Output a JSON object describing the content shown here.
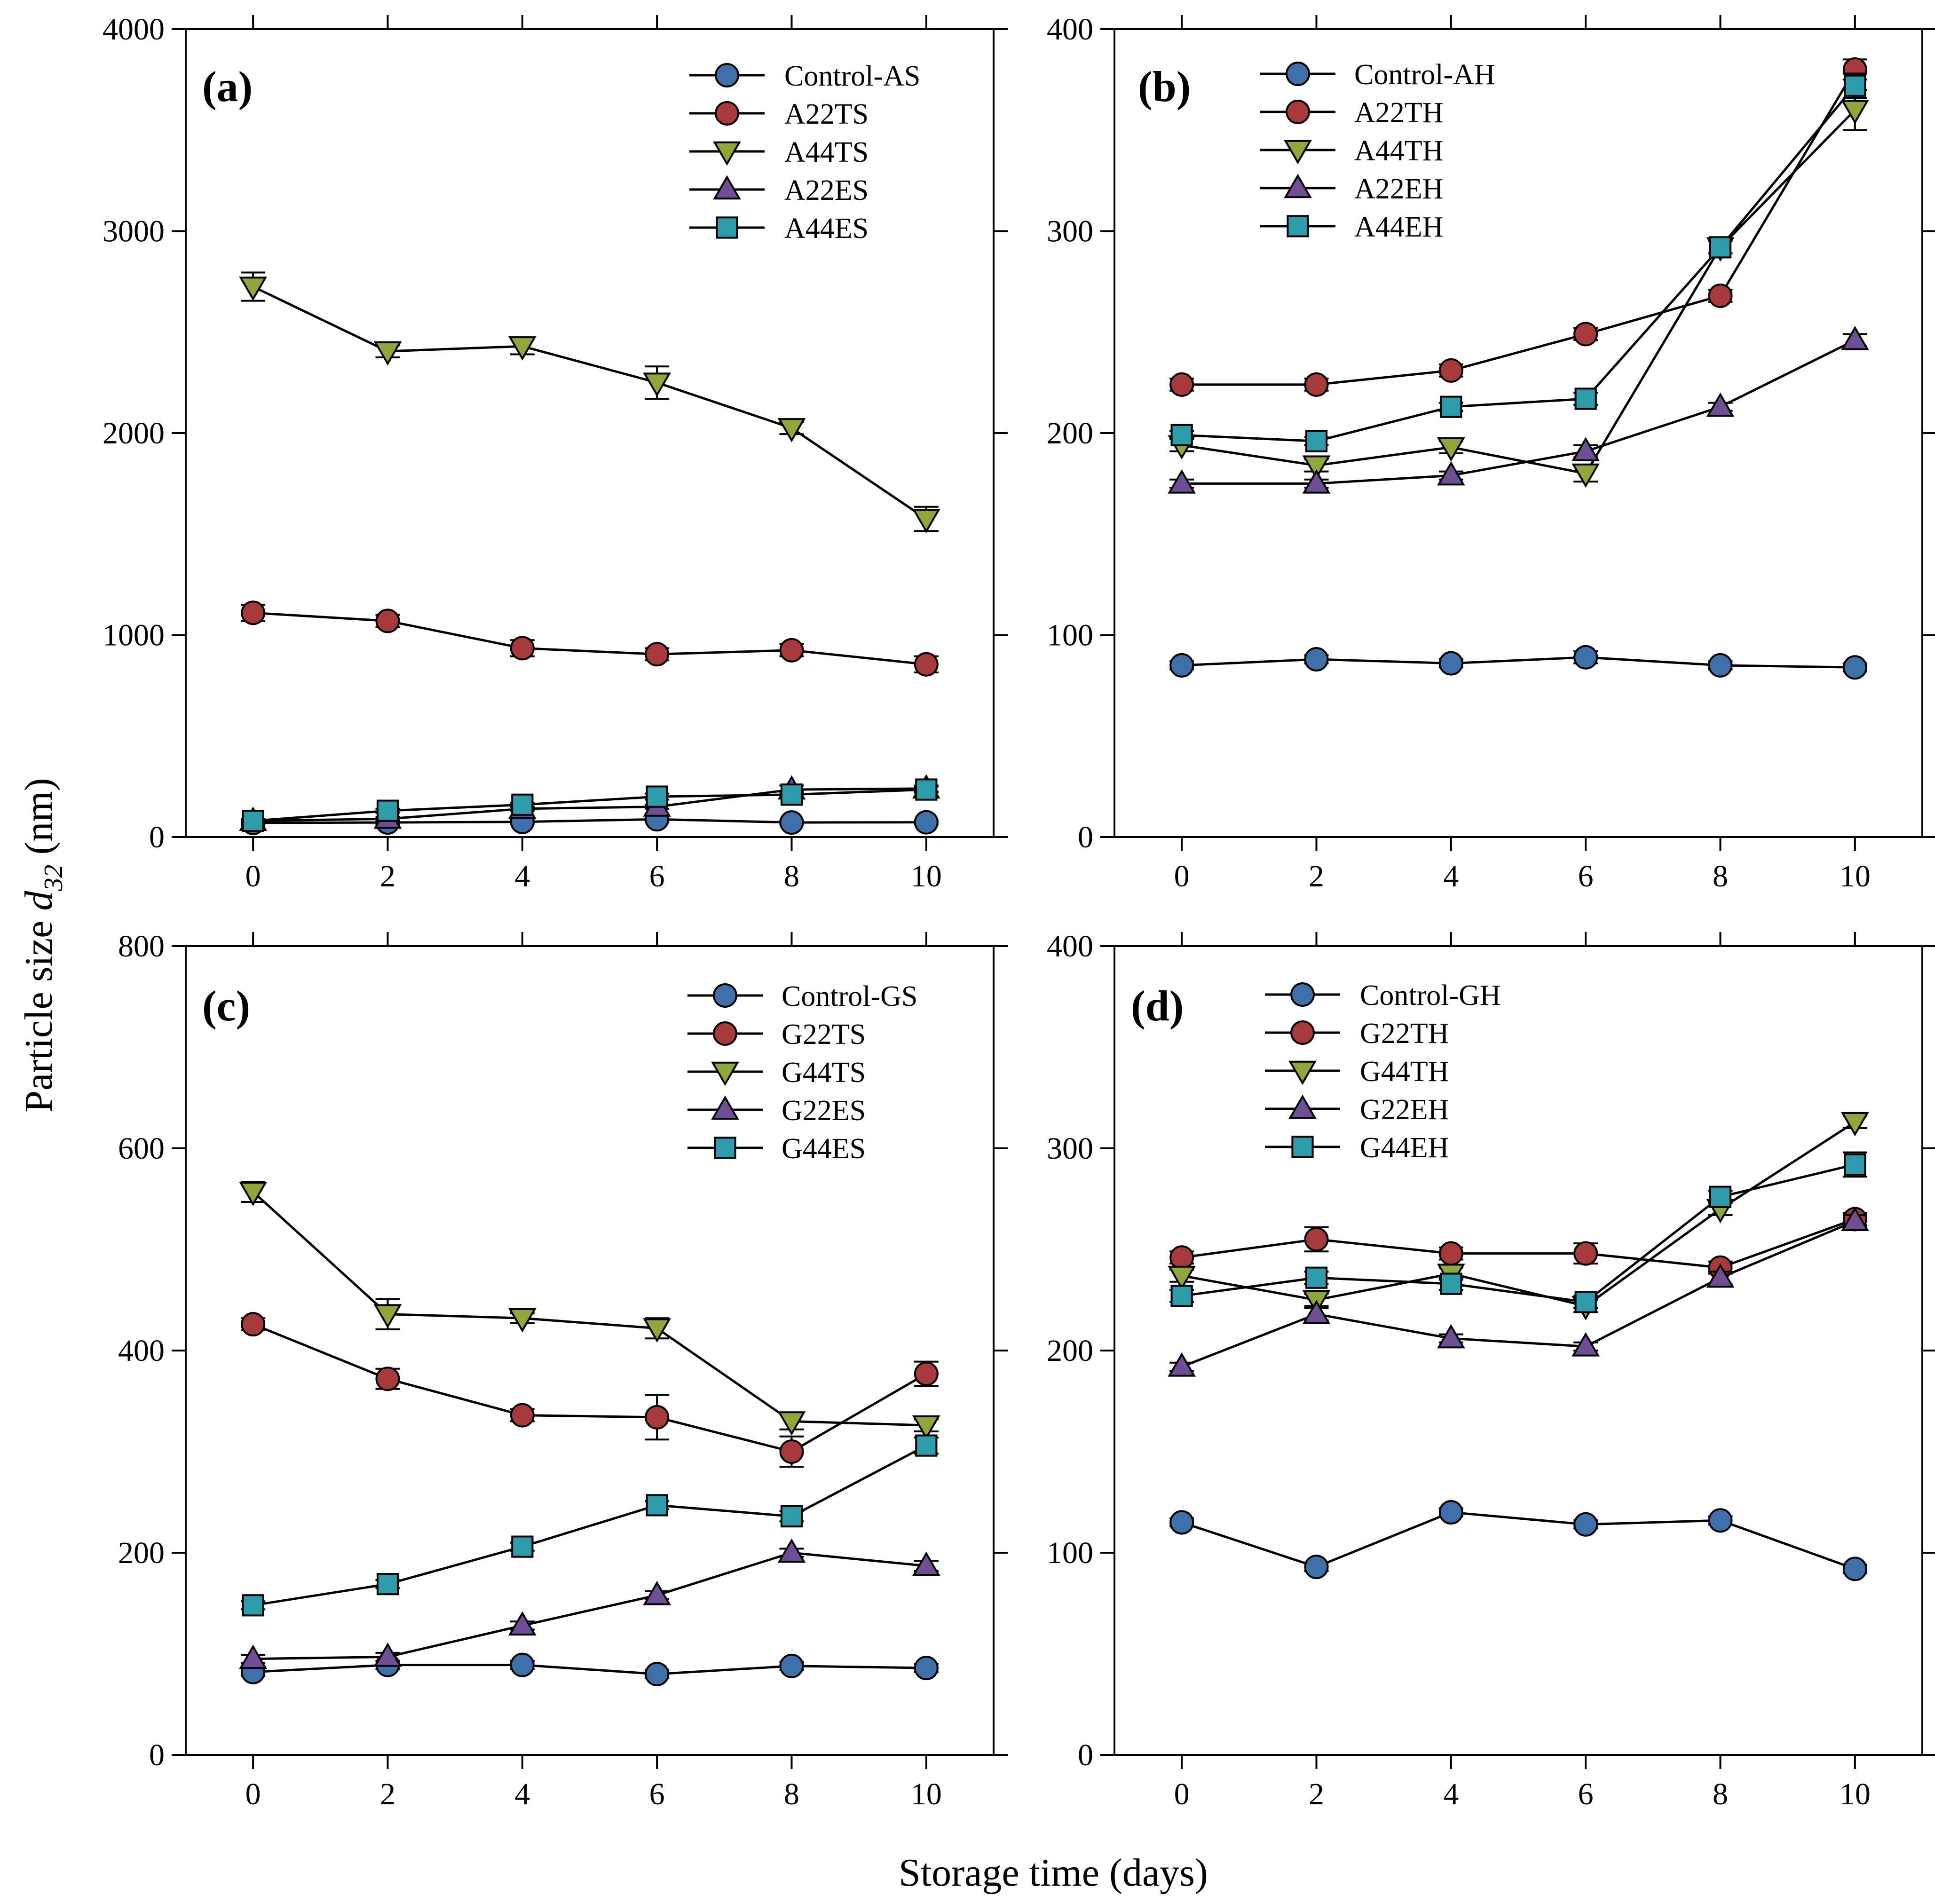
{
  "figure": {
    "xlabel": "Storage time (days)",
    "ylabel_prefix": "Particle size ",
    "ylabel_symbol": "d",
    "ylabel_subscript": "32",
    "ylabel_suffix": " (nm)"
  },
  "series_colors": {
    "circle_blue": "#3F6FA8",
    "circle_red": "#A8393A",
    "triangle_down_green": "#8FA73A",
    "triangle_up_purple": "#6E4F96",
    "square_teal": "#2E9BAA"
  },
  "chart_data": [
    {
      "type": "line",
      "panel": "(a)",
      "x": [
        0,
        2,
        4,
        6,
        8,
        10
      ],
      "xticks": [
        "0",
        "2",
        "4",
        "6",
        "8",
        "10"
      ],
      "ylim": [
        0,
        4000
      ],
      "yticks": [
        "0",
        "1000",
        "2000",
        "3000",
        "4000"
      ],
      "series": [
        {
          "name": "Control-AS",
          "marker": "circle",
          "color": "#3F6FA8",
          "values": [
            70,
            72,
            75,
            88,
            72,
            73
          ],
          "errors": [
            10,
            10,
            10,
            12,
            10,
            10
          ]
        },
        {
          "name": "A22TS",
          "marker": "circle",
          "color": "#A8393A",
          "values": [
            1110,
            1070,
            935,
            905,
            925,
            855
          ],
          "errors": [
            40,
            30,
            40,
            30,
            30,
            40
          ]
        },
        {
          "name": "A44TS",
          "marker": "triangle-down",
          "color": "#8FA73A",
          "values": [
            2725,
            2405,
            2430,
            2250,
            2025,
            1575
          ],
          "errors": [
            70,
            30,
            40,
            80,
            30,
            60
          ]
        },
        {
          "name": "A22ES",
          "marker": "triangle-up",
          "color": "#6E4F96",
          "values": [
            80,
            90,
            140,
            150,
            235,
            240
          ],
          "errors": [
            10,
            10,
            10,
            10,
            20,
            15
          ]
        },
        {
          "name": "A44ES",
          "marker": "square",
          "color": "#2E9BAA",
          "values": [
            80,
            130,
            160,
            200,
            210,
            235
          ],
          "errors": [
            10,
            10,
            10,
            15,
            15,
            15
          ]
        }
      ]
    },
    {
      "type": "line",
      "panel": "(b)",
      "x": [
        0,
        2,
        4,
        6,
        8,
        10
      ],
      "xticks": [
        "0",
        "2",
        "4",
        "6",
        "8",
        "10"
      ],
      "ylim": [
        0,
        400
      ],
      "yticks": [
        "0",
        "100",
        "200",
        "300",
        "400"
      ],
      "series": [
        {
          "name": "Control-AH",
          "marker": "circle",
          "color": "#3F6FA8",
          "values": [
            85,
            88,
            86,
            89,
            85,
            84
          ],
          "errors": [
            2,
            2,
            2,
            3,
            2,
            2
          ]
        },
        {
          "name": "A22TH",
          "marker": "circle",
          "color": "#A8393A",
          "values": [
            224,
            224,
            231,
            249,
            268,
            380
          ],
          "errors": [
            3,
            3,
            3,
            3,
            3,
            5
          ]
        },
        {
          "name": "A44TH",
          "marker": "triangle-down",
          "color": "#8FA73A",
          "values": [
            194,
            184,
            193,
            180,
            292,
            360
          ],
          "errors": [
            3,
            3,
            3,
            4,
            3,
            10
          ]
        },
        {
          "name": "A22EH",
          "marker": "triangle-up",
          "color": "#6E4F96",
          "values": [
            175,
            175,
            179,
            191,
            213,
            246
          ],
          "errors": [
            2,
            2,
            2,
            3,
            2,
            3
          ]
        },
        {
          "name": "A44EH",
          "marker": "square",
          "color": "#2E9BAA",
          "values": [
            199,
            196,
            213,
            217,
            292,
            372
          ],
          "errors": [
            2,
            2,
            2,
            3,
            3,
            6
          ]
        }
      ]
    },
    {
      "type": "line",
      "panel": "(c)",
      "x": [
        0,
        2,
        4,
        6,
        8,
        10
      ],
      "xticks": [
        "0",
        "2",
        "4",
        "6",
        "8",
        "10"
      ],
      "ylim": [
        0,
        800
      ],
      "yticks": [
        "0",
        "200",
        "400",
        "600",
        "800"
      ],
      "series": [
        {
          "name": "Control-GS",
          "marker": "circle",
          "color": "#3F6FA8",
          "values": [
            82,
            89,
            89,
            80,
            88,
            86
          ],
          "errors": [
            4,
            4,
            4,
            4,
            4,
            4
          ]
        },
        {
          "name": "G22TS",
          "marker": "circle",
          "color": "#A8393A",
          "values": [
            426,
            372,
            336,
            334,
            300,
            377
          ],
          "errors": [
            6,
            10,
            6,
            22,
            15,
            12
          ]
        },
        {
          "name": "G44TS",
          "marker": "triangle-down",
          "color": "#8FA73A",
          "values": [
            557,
            436,
            432,
            422,
            330,
            326
          ],
          "errors": [
            10,
            15,
            5,
            10,
            8,
            6
          ]
        },
        {
          "name": "G22ES",
          "marker": "triangle-up",
          "color": "#6E4F96",
          "values": [
            95,
            97,
            128,
            158,
            200,
            187
          ],
          "errors": [
            4,
            4,
            4,
            4,
            4,
            5
          ]
        },
        {
          "name": "G44ES",
          "marker": "square",
          "color": "#2E9BAA",
          "values": [
            148,
            169,
            206,
            247,
            236,
            306
          ],
          "errors": [
            4,
            4,
            4,
            4,
            5,
            8
          ]
        }
      ]
    },
    {
      "type": "line",
      "panel": "(d)",
      "x": [
        0,
        2,
        4,
        6,
        8,
        10
      ],
      "xticks": [
        "0",
        "2",
        "4",
        "6",
        "8",
        "10"
      ],
      "ylim": [
        0,
        400
      ],
      "yticks": [
        "0",
        "100",
        "200",
        "300",
        "400"
      ],
      "series": [
        {
          "name": "Control-GH",
          "marker": "circle",
          "color": "#3F6FA8",
          "values": [
            115,
            93,
            120,
            114,
            116,
            92
          ],
          "errors": [
            2,
            2,
            2,
            2,
            2,
            2
          ]
        },
        {
          "name": "G22TH",
          "marker": "circle",
          "color": "#A8393A",
          "values": [
            246,
            255,
            248,
            248,
            241,
            265
          ],
          "errors": [
            3,
            6,
            3,
            5,
            3,
            3
          ]
        },
        {
          "name": "G44TH",
          "marker": "triangle-down",
          "color": "#8FA73A",
          "values": [
            237,
            225,
            238,
            222,
            270,
            313
          ],
          "errors": [
            3,
            3,
            3,
            3,
            3,
            3
          ]
        },
        {
          "name": "G22EH",
          "marker": "triangle-up",
          "color": "#6E4F96",
          "values": [
            192,
            218,
            206,
            202,
            236,
            264
          ],
          "errors": [
            2,
            3,
            2,
            2,
            3,
            3
          ]
        },
        {
          "name": "G44EH",
          "marker": "square",
          "color": "#2E9BAA",
          "values": [
            227,
            236,
            233,
            224,
            276,
            292
          ],
          "errors": [
            3,
            3,
            3,
            3,
            3,
            6
          ]
        }
      ]
    }
  ]
}
